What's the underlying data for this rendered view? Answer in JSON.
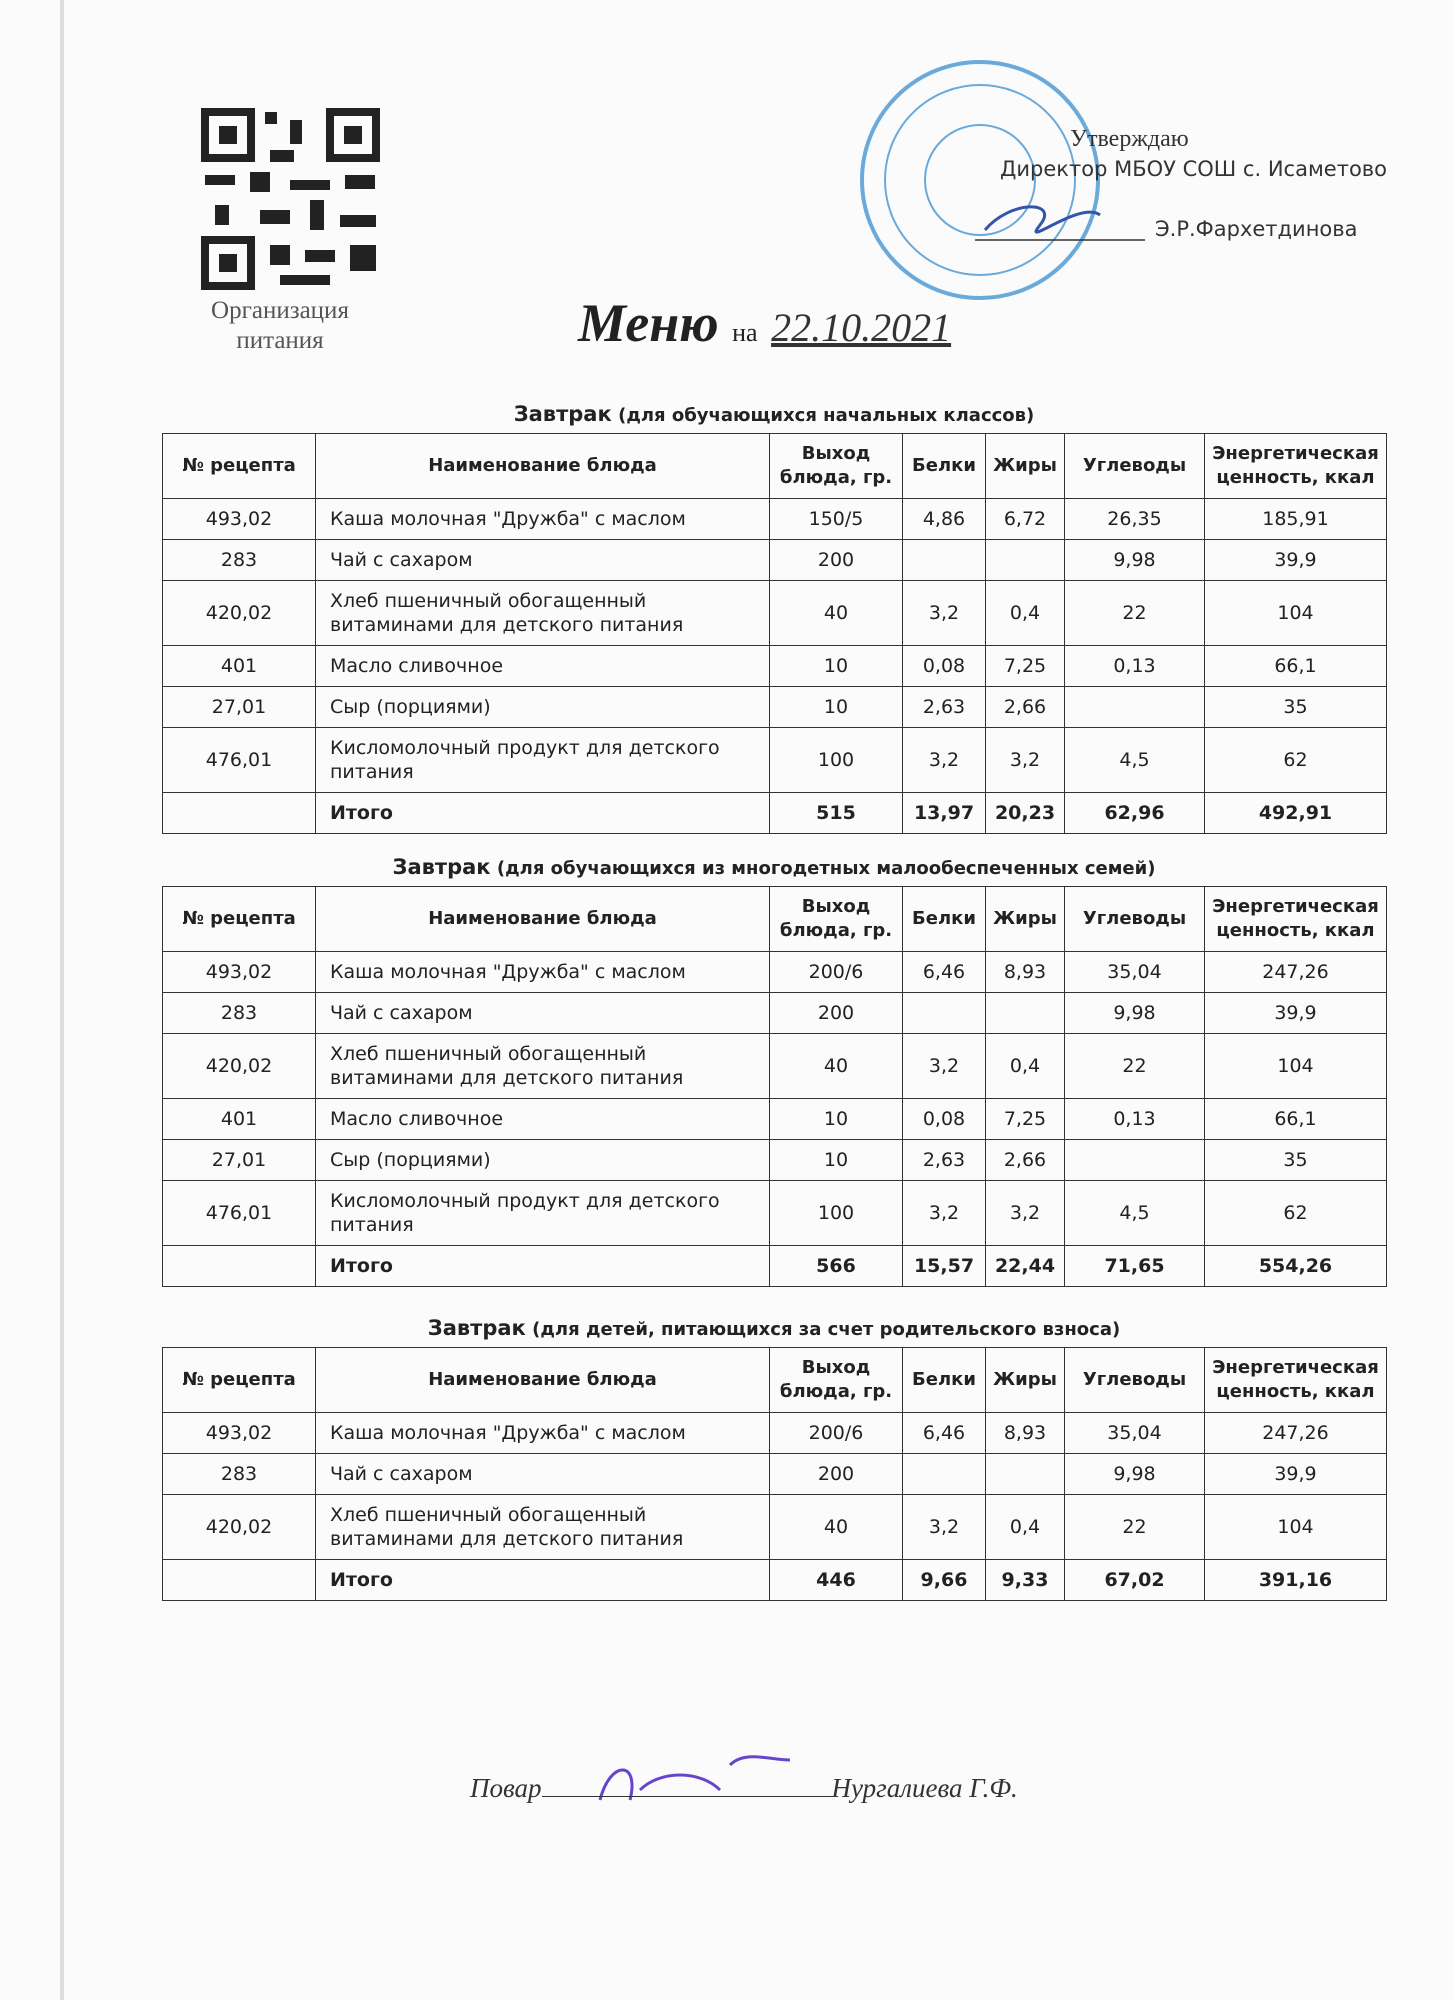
{
  "qr_caption": [
    "Организация",
    "питания"
  ],
  "approval": {
    "line1": "Утверждаю",
    "line2": "Директор МБОУ СОШ с. Исаметово",
    "signer": "Э.Р.Фархетдинова"
  },
  "title": {
    "main": "Меню",
    "prep": "на",
    "date": "22.10.2021"
  },
  "columns": [
    "№ рецепта",
    "Наименование блюда",
    "Выход блюда, гр.",
    "Белки",
    "Жиры",
    "Углеводы",
    "Энергетическая ценность, ккал"
  ],
  "sections": [
    {
      "title": "Завтрак",
      "subtitle": "(для обучающихся начальных классов)",
      "rows": [
        [
          "493,02",
          "Каша молочная \"Дружба\" с маслом",
          "150/5",
          "4,86",
          "6,72",
          "26,35",
          "185,91"
        ],
        [
          "283",
          "Чай с сахаром",
          "200",
          null,
          null,
          "9,98",
          "39,9"
        ],
        [
          "420,02",
          "Хлеб пшеничный обогащенный витаминами для детского питания",
          "40",
          "3,2",
          "0,4",
          "22",
          "104"
        ],
        [
          "401",
          "Масло сливочное",
          "10",
          "0,08",
          "7,25",
          "0,13",
          "66,1"
        ],
        [
          "27,01",
          "Сыр (порциями)",
          "10",
          "2,63",
          "2,66",
          null,
          "35"
        ],
        [
          "476,01",
          "Кисломолочный продукт для детского питания",
          "100",
          "3,2",
          "3,2",
          "4,5",
          "62"
        ],
        [
          null,
          "Итого",
          "515",
          "13,97",
          "20,23",
          "62,96",
          "492,91"
        ]
      ]
    },
    {
      "title": "Завтрак",
      "subtitle": "(для обучающихся из многодетных малообеспеченных семей)",
      "rows": [
        [
          "493,02",
          "Каша молочная \"Дружба\" с маслом",
          "200/6",
          "6,46",
          "8,93",
          "35,04",
          "247,26"
        ],
        [
          "283",
          "Чай с сахаром",
          "200",
          null,
          null,
          "9,98",
          "39,9"
        ],
        [
          "420,02",
          "Хлеб пшеничный обогащенный витаминами для детского питания",
          "40",
          "3,2",
          "0,4",
          "22",
          "104"
        ],
        [
          "401",
          "Масло сливочное",
          "10",
          "0,08",
          "7,25",
          "0,13",
          "66,1"
        ],
        [
          "27,01",
          "Сыр (порциями)",
          "10",
          "2,63",
          "2,66",
          null,
          "35"
        ],
        [
          "476,01",
          "Кисломолочный продукт для детского питания",
          "100",
          "3,2",
          "3,2",
          "4,5",
          "62"
        ],
        [
          null,
          "Итого",
          "566",
          "15,57",
          "22,44",
          "71,65",
          "554,26"
        ]
      ]
    },
    {
      "title": "Завтрак",
      "subtitle": "(для детей, питающихся за счет родительского взноса)",
      "rows": [
        [
          "493,02",
          "Каша молочная \"Дружба\" с маслом",
          "200/6",
          "6,46",
          "8,93",
          "35,04",
          "247,26"
        ],
        [
          "283",
          "Чай с сахаром",
          "200",
          null,
          null,
          "9,98",
          "39,9"
        ],
        [
          "420,02",
          "Хлеб пшеничный обогащенный витаминами для детского питания",
          "40",
          "3,2",
          "0,4",
          "22",
          "104"
        ],
        [
          null,
          "Итого",
          "446",
          "9,66",
          "9,33",
          "67,02",
          "391,16"
        ]
      ]
    }
  ],
  "footer": {
    "role": "Повар",
    "name": "Нургалиева Г.Ф."
  }
}
